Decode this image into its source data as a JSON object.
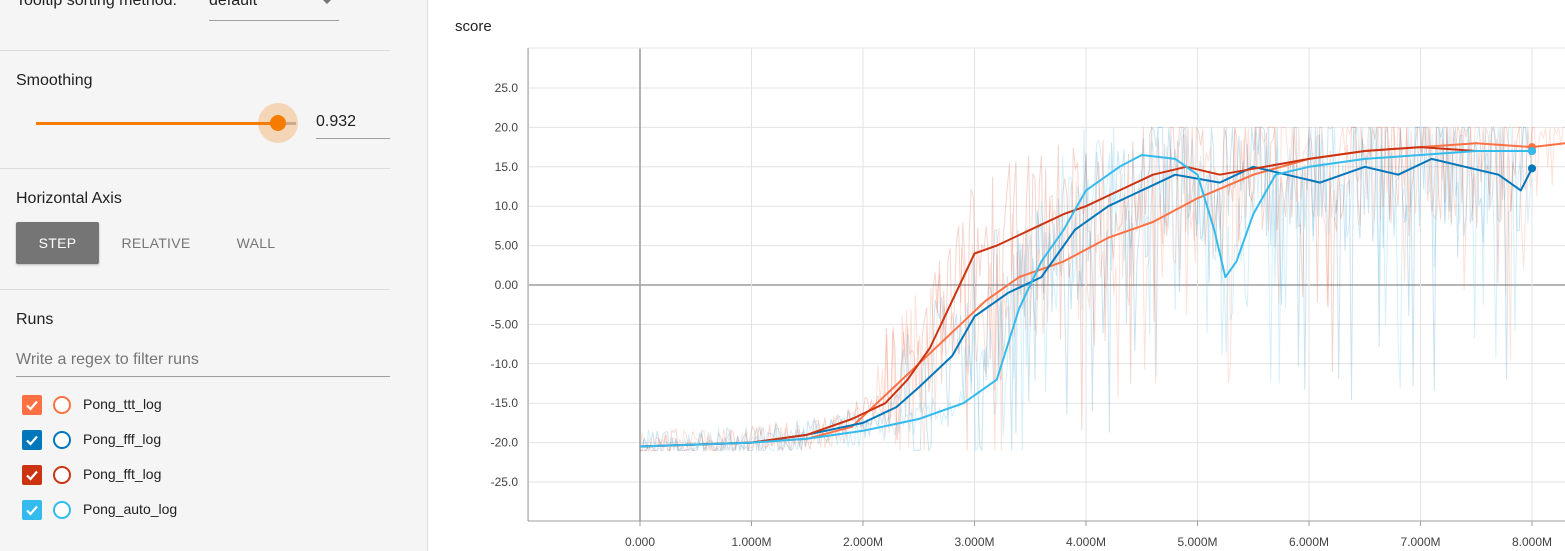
{
  "sidebar": {
    "tooltip_sorting": {
      "label": "Tooltip sorting method:",
      "value": "default"
    },
    "smoothing": {
      "title": "Smoothing",
      "value": "0.932",
      "fraction": 0.932
    },
    "horizontal_axis": {
      "title": "Horizontal Axis",
      "options": [
        {
          "label": "STEP",
          "active": true
        },
        {
          "label": "RELATIVE",
          "active": false
        },
        {
          "label": "WALL",
          "active": false
        }
      ]
    },
    "runs": {
      "title": "Runs",
      "filter_placeholder": "Write a regex to filter runs",
      "items": [
        {
          "name": "Pong_ttt_log",
          "color": "#ff7043",
          "checked": true
        },
        {
          "name": "Pong_fff_log",
          "color": "#0077bb",
          "checked": true
        },
        {
          "name": "Pong_fft_log",
          "color": "#cc3311",
          "checked": true
        },
        {
          "name": "Pong_auto_log",
          "color": "#33bbee",
          "checked": true
        }
      ]
    }
  },
  "chart_data": {
    "type": "line",
    "title": "score",
    "xlabel": "",
    "ylabel": "",
    "xlim": [
      -1000000,
      9000000
    ],
    "ylim": [
      -30,
      30
    ],
    "x_ticks": [
      {
        "value": 0,
        "label": "0.000"
      },
      {
        "value": 1000000,
        "label": "1.000M"
      },
      {
        "value": 2000000,
        "label": "2.000M"
      },
      {
        "value": 3000000,
        "label": "3.000M"
      },
      {
        "value": 4000000,
        "label": "4.000M"
      },
      {
        "value": 5000000,
        "label": "5.000M"
      },
      {
        "value": 6000000,
        "label": "6.000M"
      },
      {
        "value": 7000000,
        "label": "7.000M"
      },
      {
        "value": 8000000,
        "label": "8.000M"
      }
    ],
    "y_ticks": [
      {
        "value": 25,
        "label": "25.0"
      },
      {
        "value": 20,
        "label": "20.0"
      },
      {
        "value": 15,
        "label": "15.0"
      },
      {
        "value": 10,
        "label": "10.0"
      },
      {
        "value": 5,
        "label": "5.00"
      },
      {
        "value": 0,
        "label": "0.00"
      },
      {
        "value": -5,
        "label": "-5.00"
      },
      {
        "value": -10,
        "label": "-10.0"
      },
      {
        "value": -15,
        "label": "-15.0"
      },
      {
        "value": -20,
        "label": "-20.0"
      },
      {
        "value": -25,
        "label": "-25.0"
      }
    ],
    "grid": true,
    "series": [
      {
        "name": "Pong_ttt_log",
        "color": "#ff7043",
        "points": [
          [
            0,
            -20.5
          ],
          [
            1000000,
            -20
          ],
          [
            1500000,
            -19.5
          ],
          [
            1900000,
            -18
          ],
          [
            2200000,
            -14
          ],
          [
            2500000,
            -10
          ],
          [
            2800000,
            -6
          ],
          [
            3100000,
            -2
          ],
          [
            3400000,
            1
          ],
          [
            3800000,
            3
          ],
          [
            4200000,
            6
          ],
          [
            4600000,
            8
          ],
          [
            5000000,
            11
          ],
          [
            5500000,
            14
          ],
          [
            6000000,
            16
          ],
          [
            6500000,
            17
          ],
          [
            7000000,
            17.5
          ],
          [
            7500000,
            18
          ],
          [
            8000000,
            17.5
          ],
          [
            8300000,
            18
          ]
        ]
      },
      {
        "name": "Pong_fff_log",
        "color": "#0077bb",
        "points": [
          [
            0,
            -20.5
          ],
          [
            1000000,
            -20
          ],
          [
            1500000,
            -19
          ],
          [
            2000000,
            -17.5
          ],
          [
            2300000,
            -15.5
          ],
          [
            2500000,
            -13
          ],
          [
            2800000,
            -9
          ],
          [
            3000000,
            -4
          ],
          [
            3300000,
            -1
          ],
          [
            3600000,
            1
          ],
          [
            3900000,
            7
          ],
          [
            4200000,
            10
          ],
          [
            4500000,
            12
          ],
          [
            4800000,
            14
          ],
          [
            5200000,
            13
          ],
          [
            5500000,
            15
          ],
          [
            5800000,
            14
          ],
          [
            6100000,
            13
          ],
          [
            6500000,
            15
          ],
          [
            6800000,
            14
          ],
          [
            7100000,
            16
          ],
          [
            7400000,
            15
          ],
          [
            7700000,
            14
          ],
          [
            7900000,
            12
          ],
          [
            8000000,
            14.8
          ]
        ]
      },
      {
        "name": "Pong_fft_log",
        "color": "#cc3311",
        "points": [
          [
            0,
            -20.5
          ],
          [
            1000000,
            -20
          ],
          [
            1500000,
            -19
          ],
          [
            1900000,
            -17
          ],
          [
            2200000,
            -15
          ],
          [
            2400000,
            -12
          ],
          [
            2600000,
            -8
          ],
          [
            2800000,
            -2
          ],
          [
            3000000,
            4
          ],
          [
            3200000,
            5
          ],
          [
            3500000,
            7
          ],
          [
            3800000,
            9
          ],
          [
            4000000,
            10
          ],
          [
            4300000,
            12
          ],
          [
            4600000,
            14
          ],
          [
            4900000,
            15
          ],
          [
            5200000,
            14
          ],
          [
            5600000,
            15
          ],
          [
            6000000,
            16
          ],
          [
            6500000,
            17
          ],
          [
            7000000,
            17.5
          ],
          [
            7500000,
            17
          ],
          [
            8000000,
            17
          ]
        ]
      },
      {
        "name": "Pong_auto_log",
        "color": "#33bbee",
        "points": [
          [
            0,
            -20.5
          ],
          [
            1000000,
            -20
          ],
          [
            1500000,
            -19.5
          ],
          [
            2000000,
            -18.5
          ],
          [
            2500000,
            -17
          ],
          [
            2900000,
            -15
          ],
          [
            3200000,
            -12
          ],
          [
            3400000,
            -3
          ],
          [
            3600000,
            3
          ],
          [
            3800000,
            7
          ],
          [
            4000000,
            12
          ],
          [
            4300000,
            15
          ],
          [
            4500000,
            16.5
          ],
          [
            4800000,
            16
          ],
          [
            5000000,
            14
          ],
          [
            5150000,
            7
          ],
          [
            5250000,
            1
          ],
          [
            5350000,
            3
          ],
          [
            5500000,
            9
          ],
          [
            5700000,
            14
          ],
          [
            6000000,
            15
          ],
          [
            6500000,
            16
          ],
          [
            7000000,
            16.5
          ],
          [
            7500000,
            17
          ],
          [
            8000000,
            17
          ]
        ]
      }
    ]
  }
}
